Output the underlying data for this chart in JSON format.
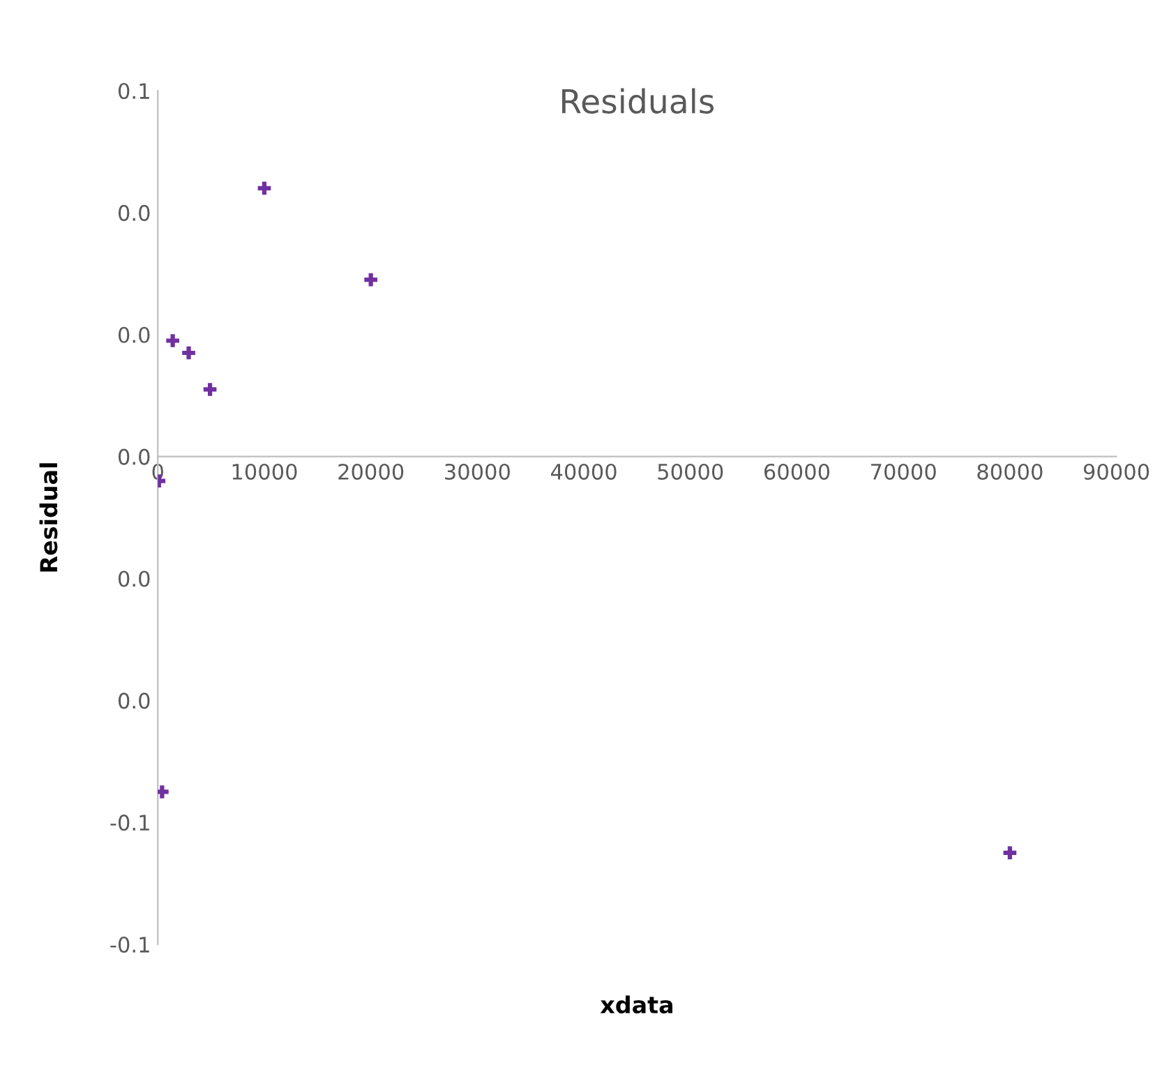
{
  "chart_data": {
    "type": "scatter",
    "title": "Residuals",
    "xlabel": "xdata",
    "ylabel": "Residual",
    "x": [
      100,
      400,
      1400,
      2900,
      4900,
      10000,
      20000,
      80000
    ],
    "series": [
      {
        "color": "#7030a0",
        "values": [
          -0.004,
          -0.055,
          0.019,
          0.017,
          0.011,
          0.044,
          0.029,
          -0.065
        ]
      }
    ],
    "xlim": [
      0,
      90000
    ],
    "xticks": [
      0,
      10000,
      20000,
      30000,
      40000,
      50000,
      60000,
      70000,
      80000,
      90000
    ],
    "ylim": [
      -0.08,
      0.06
    ],
    "yticks": [
      {
        "value": -0.08,
        "label": "-0.1"
      },
      {
        "value": -0.06,
        "label": "-0.1"
      },
      {
        "value": -0.04,
        "label": "0.0"
      },
      {
        "value": -0.02,
        "label": "0.0"
      },
      {
        "value": 0,
        "label": "0.0"
      },
      {
        "value": 0.02,
        "label": "0.0"
      },
      {
        "value": 0.04,
        "label": "0.0"
      },
      {
        "value": 0.06,
        "label": "0.1"
      }
    ],
    "grid": false,
    "legend": false,
    "marker": "cross"
  }
}
